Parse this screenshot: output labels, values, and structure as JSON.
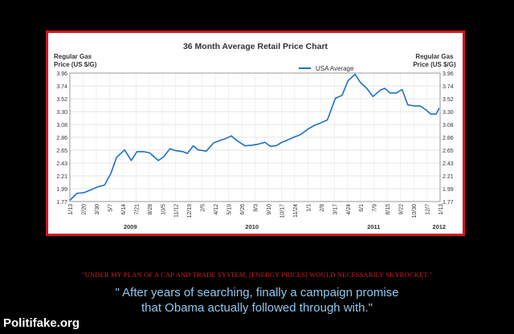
{
  "chart_data": {
    "type": "line",
    "title": "36 Month Average Retail Price Chart",
    "ylabel_left": [
      "Regular Gas",
      "Price (US $/G)"
    ],
    "ylabel_right": [
      "Regular Gas",
      "Price (US $/G)"
    ],
    "legend": "USA Average",
    "legend_position": "top-right",
    "y_ticks": [
      "3.96",
      "3.74",
      "3.52",
      "3.30",
      "3.08",
      "2.86",
      "2.65",
      "2.43",
      "2.21",
      "1.99",
      "1.77"
    ],
    "ylim": [
      1.77,
      3.96
    ],
    "x_ticks": [
      "1/13",
      "2/20",
      "3/30",
      "5/7",
      "6/14",
      "7/21",
      "8/28",
      "10/5",
      "11/12",
      "12/19",
      "2/5",
      "4/12",
      "5/19",
      "6/26",
      "8/3",
      "9/10",
      "10/17",
      "11/24",
      "1/1",
      "2/8",
      "3/17",
      "4/24",
      "6/1",
      "7/9",
      "8/15",
      "9/22",
      "10/30",
      "12/7",
      "1/13"
    ],
    "years": [
      "2009",
      "2010",
      "2011",
      "2012"
    ],
    "grid": true,
    "series": [
      {
        "name": "USA Average",
        "color": "#1f6fc5",
        "x": [
          "2009-01-01",
          "2009-01-22",
          "2009-02-12",
          "2009-03-01",
          "2009-03-26",
          "2009-04-15",
          "2009-05-04",
          "2009-05-21",
          "2009-06-14",
          "2009-07-04",
          "2009-07-21",
          "2009-08-10",
          "2009-08-28",
          "2009-09-23",
          "2009-10-09",
          "2009-10-28",
          "2009-11-12",
          "2009-12-06",
          "2009-12-19",
          "2010-01-06",
          "2010-01-20",
          "2010-02-14",
          "2010-03-08",
          "2010-03-27",
          "2010-04-12",
          "2010-04-30",
          "2010-05-19",
          "2010-06-10",
          "2010-06-30",
          "2010-07-21",
          "2010-08-09",
          "2010-08-25",
          "2010-09-11",
          "2010-09-29",
          "2010-10-16",
          "2010-11-05",
          "2010-11-23",
          "2010-12-15",
          "2011-01-01",
          "2011-01-19",
          "2011-02-12",
          "2011-03-08",
          "2011-03-28",
          "2011-04-15",
          "2011-05-06",
          "2011-05-22",
          "2011-06-10",
          "2011-06-29",
          "2011-07-21",
          "2011-08-03",
          "2011-08-19",
          "2011-09-07",
          "2011-09-24",
          "2011-10-11",
          "2011-10-29",
          "2011-11-17",
          "2011-12-05",
          "2011-12-19",
          "2012-01-04",
          "2012-01-13"
        ],
        "values": [
          1.79,
          1.91,
          1.92,
          1.96,
          2.02,
          2.05,
          2.25,
          2.52,
          2.65,
          2.47,
          2.62,
          2.62,
          2.6,
          2.47,
          2.53,
          2.67,
          2.64,
          2.62,
          2.59,
          2.72,
          2.65,
          2.63,
          2.77,
          2.81,
          2.84,
          2.89,
          2.8,
          2.72,
          2.73,
          2.75,
          2.78,
          2.71,
          2.72,
          2.78,
          2.82,
          2.87,
          2.91,
          3.0,
          3.06,
          3.1,
          3.16,
          3.53,
          3.58,
          3.83,
          3.94,
          3.8,
          3.7,
          3.56,
          3.67,
          3.7,
          3.62,
          3.62,
          3.68,
          3.42,
          3.4,
          3.4,
          3.33,
          3.26,
          3.26,
          3.36
        ]
      }
    ]
  },
  "quote_text": "\"UNDER MY PLAN OF A CAP AND TRADE SYSTEM, [ENERGY PRICES] WOULD NECESSARILY SKYROCKET.\"",
  "caption_line1": "\" After years of searching, finally a campaign promise",
  "caption_line2": "that Obama actually followed through with.\"",
  "watermark": "Politifake.org"
}
